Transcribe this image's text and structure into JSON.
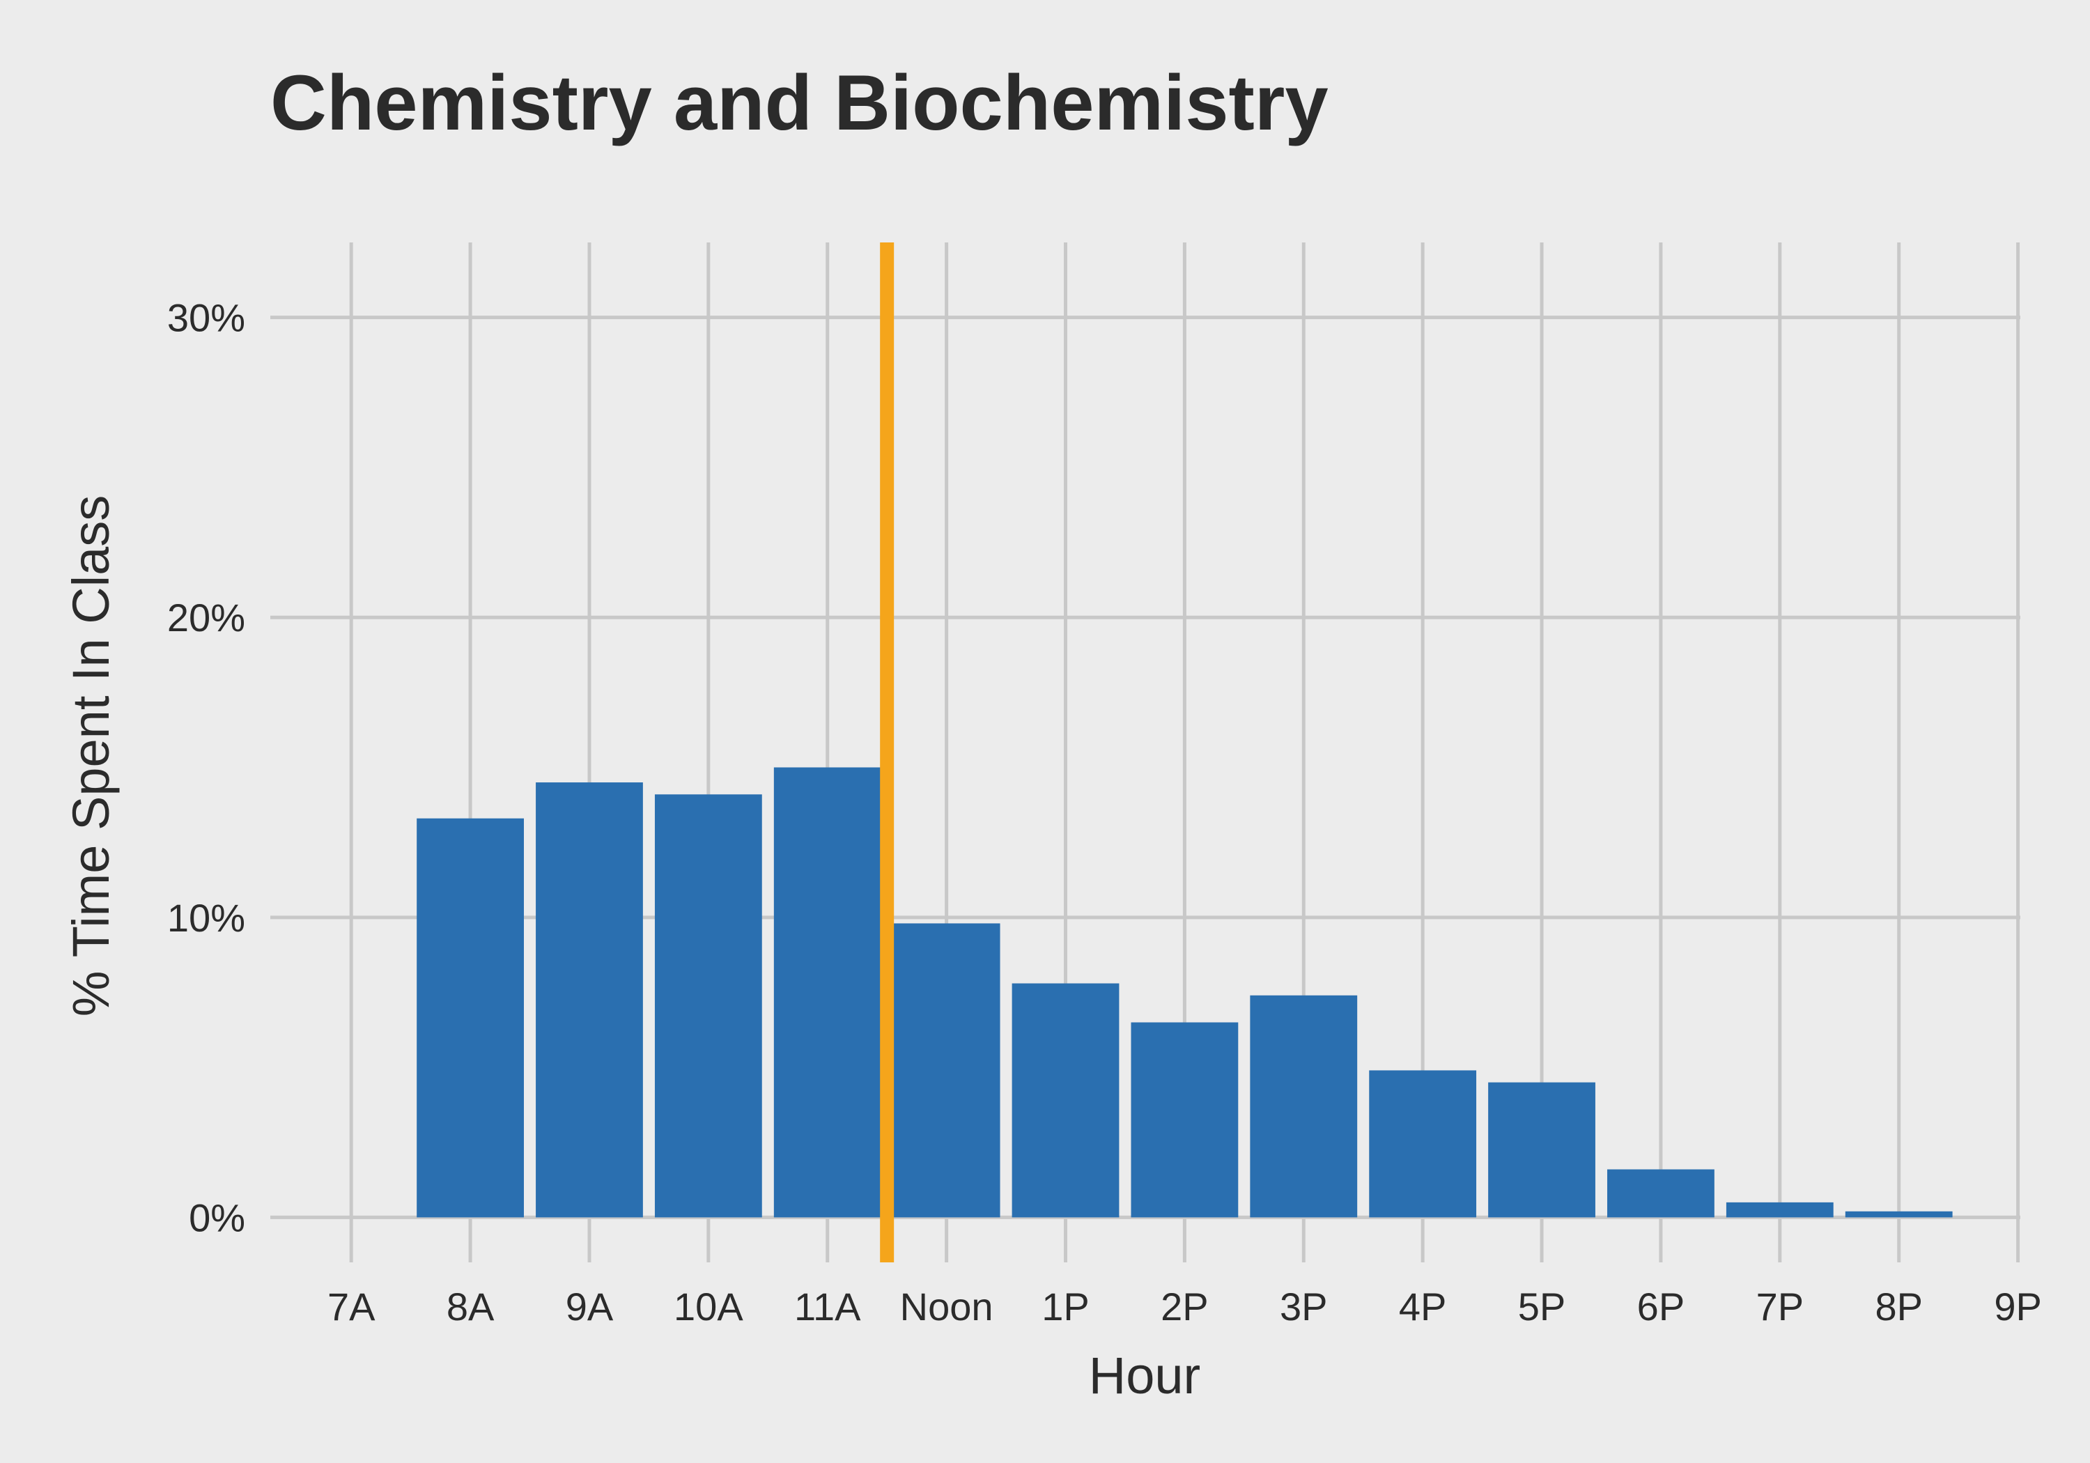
{
  "chart_data": {
    "type": "bar",
    "title": "Chemistry and Biochemistry",
    "xlabel": "Hour",
    "ylabel": "% Time Spent In Class",
    "categories": [
      "7A",
      "8A",
      "9A",
      "10A",
      "11A",
      "Noon",
      "1P",
      "2P",
      "3P",
      "4P",
      "5P",
      "6P",
      "7P",
      "8P",
      "9P"
    ],
    "values": [
      0,
      13.3,
      14.5,
      14.1,
      15.0,
      9.8,
      7.8,
      6.5,
      7.4,
      4.9,
      4.5,
      1.6,
      0.5,
      0.2,
      0
    ],
    "ylim": [
      -1.5,
      32.5
    ],
    "yticks": [
      0,
      10,
      20,
      30
    ],
    "ytick_labels": [
      "0%",
      "10%",
      "20%",
      "30%"
    ],
    "reference_line": {
      "between": [
        "11A",
        "Noon"
      ],
      "color": "#f5a51b"
    },
    "bar_color": "#2a6fb0",
    "background_color": "#ececec",
    "grid": true,
    "legend": "none"
  }
}
